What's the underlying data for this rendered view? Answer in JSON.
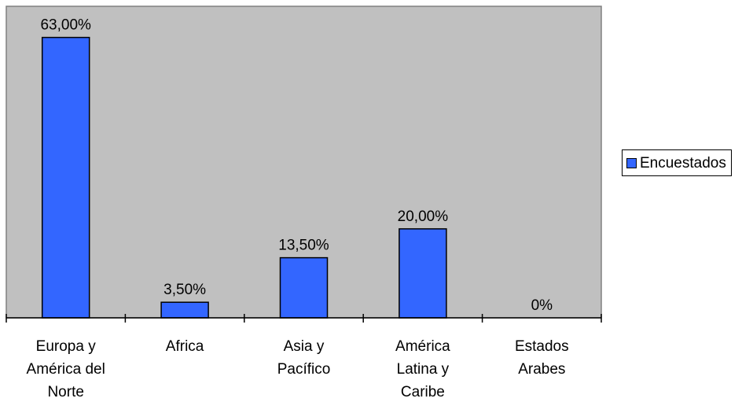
{
  "chart_data": {
    "type": "bar",
    "categories": [
      "Europa y América del Norte",
      "Africa",
      "Asia y Pacífico",
      "América Latina y Caribe",
      "Estados Arabes"
    ],
    "category_lines": [
      [
        "Europa y",
        "América del",
        "Norte"
      ],
      [
        "Africa"
      ],
      [
        "Asia y",
        "Pacífico"
      ],
      [
        "América",
        "Latina y",
        "Caribe"
      ],
      [
        "Estados",
        "Arabes"
      ]
    ],
    "series": [
      {
        "name": "Encuestados",
        "values": [
          63.0,
          3.5,
          13.5,
          20.0,
          0.0
        ],
        "data_labels": [
          "63,00%",
          "3,50%",
          "13,50%",
          "20,00%",
          "0%"
        ],
        "color": "#3366ff"
      }
    ],
    "ylim": [
      0,
      70
    ],
    "y_unit": "%",
    "plot_background": "#c0c0c0",
    "grid": false,
    "legend_position": "right",
    "title": "",
    "xlabel": "",
    "ylabel": ""
  }
}
